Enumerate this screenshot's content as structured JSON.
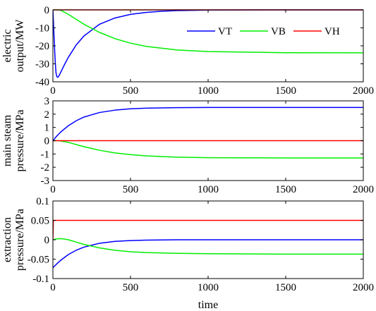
{
  "figure": {
    "xlabel": "time",
    "series_colors": {
      "VT": "#0000ff",
      "VB": "#00ee00",
      "VH": "#ff0000"
    }
  },
  "chart_data": [
    {
      "type": "line",
      "ylabel_lines": [
        "electric",
        "output/MW"
      ],
      "xlim": [
        0,
        2000
      ],
      "ylim": [
        -40,
        0
      ],
      "xticks": [
        0,
        500,
        1000,
        1500,
        2000
      ],
      "yticks": [
        0,
        -10,
        -20,
        -30,
        -40
      ],
      "legend": {
        "placement": "upper-right",
        "entries": [
          "VT",
          "VB",
          "VH"
        ]
      },
      "series": [
        {
          "name": "VT",
          "x": [
            0,
            5,
            10,
            15,
            20,
            25,
            30,
            35,
            40,
            50,
            60,
            80,
            100,
            150,
            200,
            300,
            400,
            500,
            600,
            700,
            800,
            1000,
            1500,
            2000
          ],
          "y": [
            0,
            -10,
            -20,
            -29,
            -35,
            -37,
            -37.5,
            -37.2,
            -36.5,
            -34.8,
            -33,
            -29.5,
            -26.3,
            -19.5,
            -14.5,
            -8,
            -4.5,
            -2.5,
            -1.4,
            -0.8,
            -0.4,
            -0.1,
            0,
            0
          ]
        },
        {
          "name": "VB",
          "x": [
            0,
            30,
            50,
            100,
            200,
            300,
            400,
            500,
            600,
            800,
            1000,
            1500,
            2000
          ],
          "y": [
            0,
            0,
            -0.2,
            -2.5,
            -8,
            -12.5,
            -16,
            -18.5,
            -20.3,
            -22.3,
            -23.2,
            -23.8,
            -23.9
          ]
        },
        {
          "name": "VH",
          "x": [
            0,
            2000
          ],
          "y": [
            0,
            0
          ]
        }
      ]
    },
    {
      "type": "line",
      "ylabel_lines": [
        "main steam",
        "pressure/MPa"
      ],
      "xlim": [
        0,
        2000
      ],
      "ylim": [
        -3,
        3
      ],
      "xticks": [
        0,
        500,
        1000,
        1500,
        2000
      ],
      "yticks": [
        3,
        2,
        1,
        0,
        -1,
        -2,
        -3
      ],
      "series": [
        {
          "name": "VT",
          "x": [
            0,
            25,
            50,
            100,
            150,
            200,
            300,
            400,
            500,
            600,
            800,
            1000,
            1500,
            2000
          ],
          "y": [
            0,
            0.35,
            0.65,
            1.13,
            1.5,
            1.78,
            2.12,
            2.3,
            2.4,
            2.45,
            2.49,
            2.5,
            2.5,
            2.5
          ]
        },
        {
          "name": "VB",
          "x": [
            0,
            30,
            50,
            100,
            200,
            300,
            400,
            500,
            600,
            800,
            1000,
            1500,
            2000
          ],
          "y": [
            0,
            0,
            -0.02,
            -0.13,
            -0.45,
            -0.72,
            -0.92,
            -1.05,
            -1.14,
            -1.24,
            -1.28,
            -1.3,
            -1.3
          ]
        },
        {
          "name": "VH",
          "x": [
            0,
            2000
          ],
          "y": [
            0,
            0
          ]
        }
      ]
    },
    {
      "type": "line",
      "ylabel_lines": [
        "extraction",
        "pressure/MPa"
      ],
      "xlim": [
        0,
        2000
      ],
      "ylim": [
        -0.1,
        0.1
      ],
      "xticks": [
        0,
        500,
        1000,
        1500,
        2000
      ],
      "yticks": [
        0.1,
        0.05,
        0,
        -0.05,
        -0.1
      ],
      "series": [
        {
          "name": "VT",
          "x": [
            0,
            25,
            50,
            100,
            150,
            200,
            300,
            400,
            500,
            600,
            800,
            1000,
            1500,
            2000
          ],
          "y": [
            -0.072,
            -0.062,
            -0.053,
            -0.038,
            -0.027,
            -0.019,
            -0.009,
            -0.004,
            -0.002,
            -0.001,
            0,
            0,
            0,
            0
          ]
        },
        {
          "name": "VB",
          "x": [
            0,
            20,
            50,
            80,
            100,
            150,
            200,
            300,
            400,
            500,
            600,
            800,
            1000,
            1500,
            2000
          ],
          "y": [
            0,
            0.002,
            0.003,
            0.0015,
            0,
            -0.006,
            -0.012,
            -0.021,
            -0.027,
            -0.031,
            -0.033,
            -0.035,
            -0.036,
            -0.037,
            -0.037
          ]
        },
        {
          "name": "VH",
          "x": [
            0,
            3,
            2000
          ],
          "y": [
            0,
            0.05,
            0.05
          ]
        }
      ]
    }
  ]
}
